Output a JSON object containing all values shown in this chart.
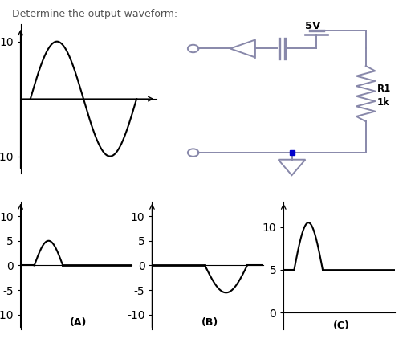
{
  "title": "Determine the output waveform:",
  "title_color": "#555555",
  "title_fontsize": 9,
  "bg_color": "#ffffff",
  "circuit_color": "#8888aa",
  "circuit_lw": 1.4,
  "supply_voltage": "5V",
  "resistor_label1": "R1",
  "resistor_label2": "1k",
  "label_A": "(A)",
  "label_B": "(B)",
  "label_C": "(C)",
  "wave_peak_A": 5.0,
  "wave_peak_B": -5.5,
  "wave_flat_C": 5.0,
  "wave_peak_C": 10.5
}
